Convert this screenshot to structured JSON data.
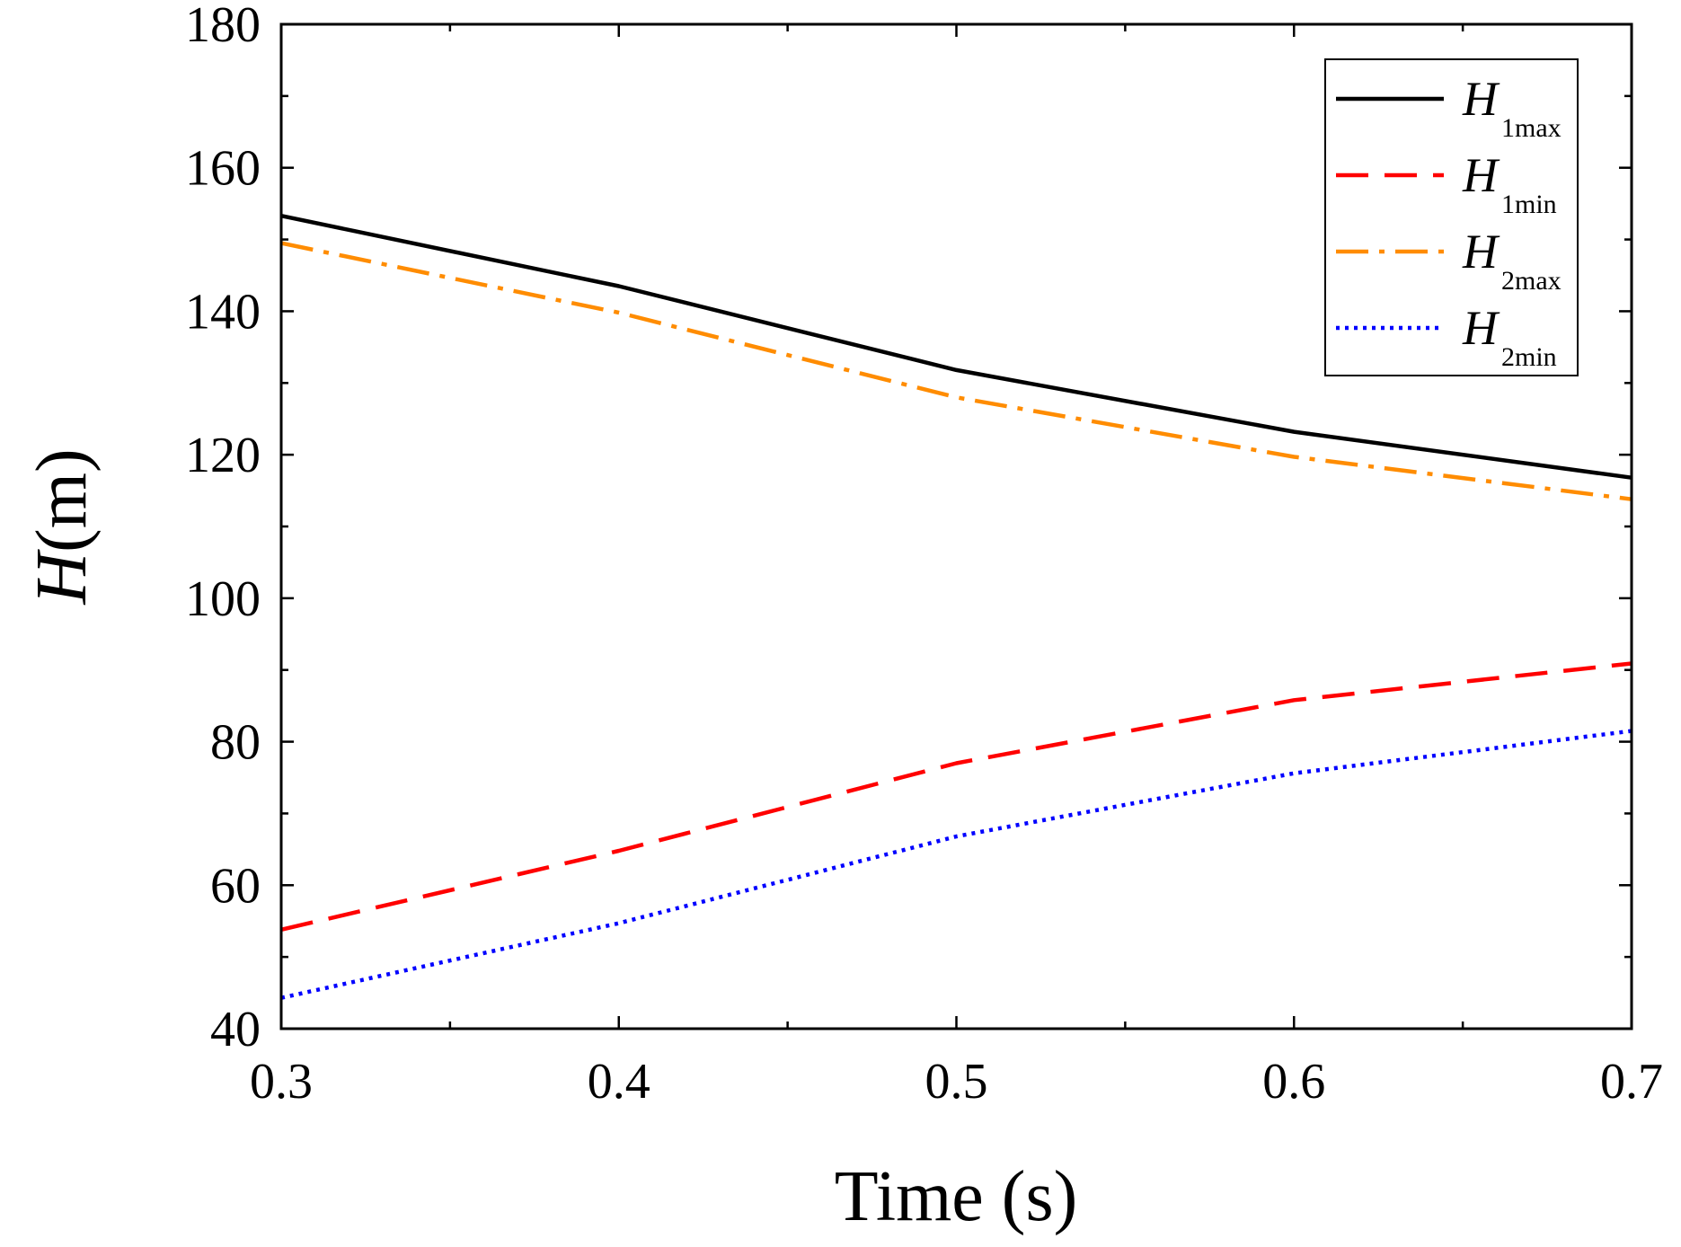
{
  "chart_data": {
    "type": "line",
    "title": "",
    "xlabel": "Time (s)",
    "ylabel_var": "H",
    "ylabel_unit": "(m)",
    "xlim": [
      0.3,
      0.7
    ],
    "ylim": [
      40,
      180
    ],
    "xticks": [
      0.3,
      0.4,
      0.5,
      0.6,
      0.7
    ],
    "xtick_labels": [
      "0.3",
      "0.4",
      "0.5",
      "0.6",
      "0.7"
    ],
    "yticks": [
      40,
      60,
      80,
      100,
      120,
      140,
      160,
      180
    ],
    "ytick_labels": [
      "40",
      "60",
      "80",
      "100",
      "120",
      "140",
      "160",
      "180"
    ],
    "grid": false,
    "legend_position": "top-right",
    "x": [
      0.3,
      0.4,
      0.5,
      0.6,
      0.7
    ],
    "series": [
      {
        "name": "H1max",
        "label_main": "H",
        "label_sub": "1max",
        "color": "#000000",
        "style": "solid",
        "values": [
          153.3,
          143.5,
          131.8,
          123.2,
          116.8
        ]
      },
      {
        "name": "H1min",
        "label_main": "H",
        "label_sub": "1min",
        "color": "#ff0000",
        "style": "dash",
        "values": [
          53.8,
          64.8,
          77.0,
          85.8,
          90.9
        ]
      },
      {
        "name": "H2max",
        "label_main": "H",
        "label_sub": "2max",
        "color": "#ff8c00",
        "style": "dashdot",
        "values": [
          149.5,
          139.8,
          128.0,
          119.7,
          113.8
        ]
      },
      {
        "name": "H2min",
        "label_main": "H",
        "label_sub": "2min",
        "color": "#0000ff",
        "style": "dot",
        "values": [
          44.3,
          54.7,
          66.8,
          75.6,
          81.5
        ]
      }
    ]
  }
}
